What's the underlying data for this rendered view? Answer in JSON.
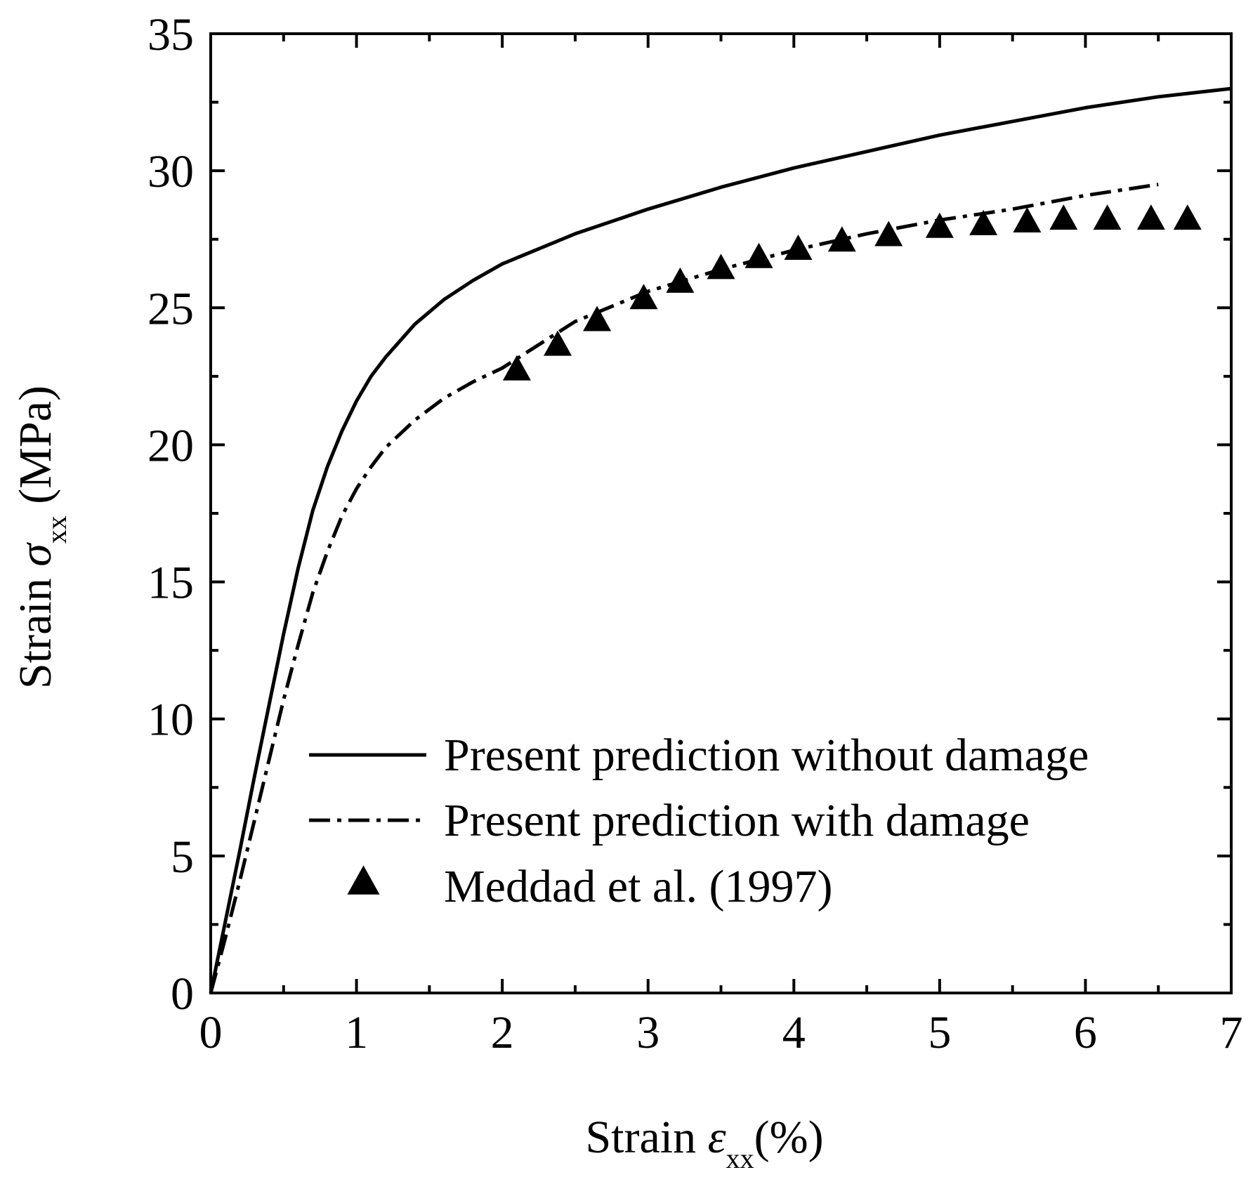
{
  "chart_data": {
    "type": "line",
    "xlabel": {
      "prefix": "Strain ",
      "symbol": "ε",
      "subscript": "xx",
      "suffix": "(%)"
    },
    "ylabel": {
      "prefix": "Strain ",
      "symbol": "σ",
      "subscript": "xx",
      "suffix": " (MPa)"
    },
    "xlim": [
      0,
      7
    ],
    "ylim": [
      0,
      35
    ],
    "xticks": [
      0,
      1,
      2,
      3,
      4,
      5,
      6,
      7
    ],
    "yticks": [
      0,
      5,
      10,
      15,
      20,
      25,
      30,
      35
    ],
    "xminor": [
      0.5,
      1.5,
      2.5,
      3.5,
      4.5,
      5.5,
      6.5
    ],
    "yminor": [
      2.5,
      7.5,
      12.5,
      17.5,
      22.5,
      27.5,
      32.5
    ],
    "grid": false,
    "legend_position": "bottom-right",
    "series": [
      {
        "name": "Present prediction without damage",
        "style": "solid",
        "x": [
          0,
          0.1,
          0.2,
          0.3,
          0.4,
          0.5,
          0.6,
          0.7,
          0.8,
          0.9,
          1.0,
          1.1,
          1.2,
          1.4,
          1.6,
          1.8,
          2.0,
          2.5,
          3.0,
          3.5,
          4.0,
          4.5,
          5.0,
          5.5,
          6.0,
          6.5,
          7.0
        ],
        "y": [
          0,
          2.6,
          5.2,
          7.9,
          10.5,
          13.1,
          15.5,
          17.6,
          19.2,
          20.5,
          21.6,
          22.5,
          23.2,
          24.4,
          25.3,
          26.0,
          26.6,
          27.7,
          28.6,
          29.4,
          30.1,
          30.7,
          31.3,
          31.8,
          32.3,
          32.7,
          33.0
        ]
      },
      {
        "name": "Present prediction with damage",
        "style": "dash-dot",
        "x": [
          0,
          0.1,
          0.2,
          0.3,
          0.4,
          0.5,
          0.6,
          0.7,
          0.8,
          0.9,
          1.0,
          1.1,
          1.2,
          1.4,
          1.6,
          1.8,
          2.0,
          2.5,
          3.0,
          3.5,
          4.0,
          4.5,
          5.0,
          5.5,
          6.0,
          6.5
        ],
        "y": [
          0,
          2.0,
          4.1,
          6.3,
          8.5,
          10.7,
          12.7,
          14.6,
          16.1,
          17.4,
          18.4,
          19.2,
          19.9,
          20.9,
          21.7,
          22.3,
          22.8,
          24.5,
          25.6,
          26.4,
          27.1,
          27.7,
          28.2,
          28.6,
          29.1,
          29.5
        ]
      },
      {
        "name": "Meddad et al. (1997)",
        "style": "markers",
        "marker": "triangle",
        "x": [
          2.1,
          2.38,
          2.65,
          2.97,
          3.22,
          3.5,
          3.76,
          4.03,
          4.33,
          4.65,
          5.0,
          5.3,
          5.6,
          5.85,
          6.15,
          6.45,
          6.7
        ],
        "y": [
          22.7,
          23.6,
          24.5,
          25.3,
          25.9,
          26.4,
          26.8,
          27.1,
          27.4,
          27.6,
          27.9,
          28.0,
          28.1,
          28.2,
          28.2,
          28.2,
          28.2
        ]
      }
    ]
  }
}
